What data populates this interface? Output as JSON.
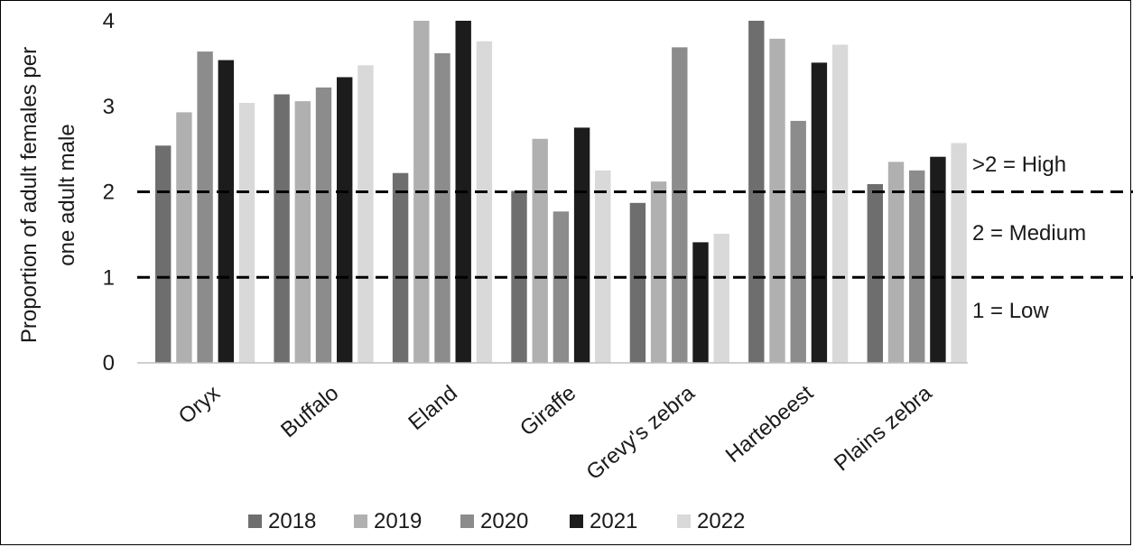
{
  "chart_data": {
    "type": "bar",
    "title": "",
    "ylabel_lines": [
      "Proportion of adult females per",
      "one adult male"
    ],
    "xlabel": "",
    "ylim": [
      0,
      4
    ],
    "yticks": [
      0,
      1,
      2,
      3,
      4
    ],
    "categories": [
      "Oryx",
      "Buffalo",
      "Eland",
      "Giraffe",
      "Grevy's zebra",
      "Hartebeest",
      "Plains zebra"
    ],
    "series": [
      {
        "name": "2018",
        "color": "#6e6e6e",
        "values": [
          2.54,
          3.14,
          2.22,
          2.01,
          1.87,
          4.0,
          2.09
        ]
      },
      {
        "name": "2019",
        "color": "#b0b0b0",
        "values": [
          2.93,
          3.06,
          4.0,
          2.62,
          2.12,
          3.79,
          2.35
        ]
      },
      {
        "name": "2020",
        "color": "#8c8c8c",
        "values": [
          3.64,
          3.22,
          3.62,
          1.77,
          3.69,
          2.83,
          2.25
        ]
      },
      {
        "name": "2021",
        "color": "#1c1c1c",
        "values": [
          3.54,
          3.34,
          4.0,
          2.75,
          1.41,
          3.51,
          2.41
        ]
      },
      {
        "name": "2022",
        "color": "#d9d9d9",
        "values": [
          3.04,
          3.48,
          3.76,
          2.25,
          1.51,
          3.72,
          2.57
        ]
      }
    ],
    "reference_lines": [
      {
        "value": 2,
        "style": "dashed"
      },
      {
        "value": 1,
        "style": "dashed"
      }
    ],
    "annotations": [
      ">2 = High",
      "2 = Medium",
      "1 = Low"
    ],
    "legend_position": "bottom",
    "grid": false
  }
}
